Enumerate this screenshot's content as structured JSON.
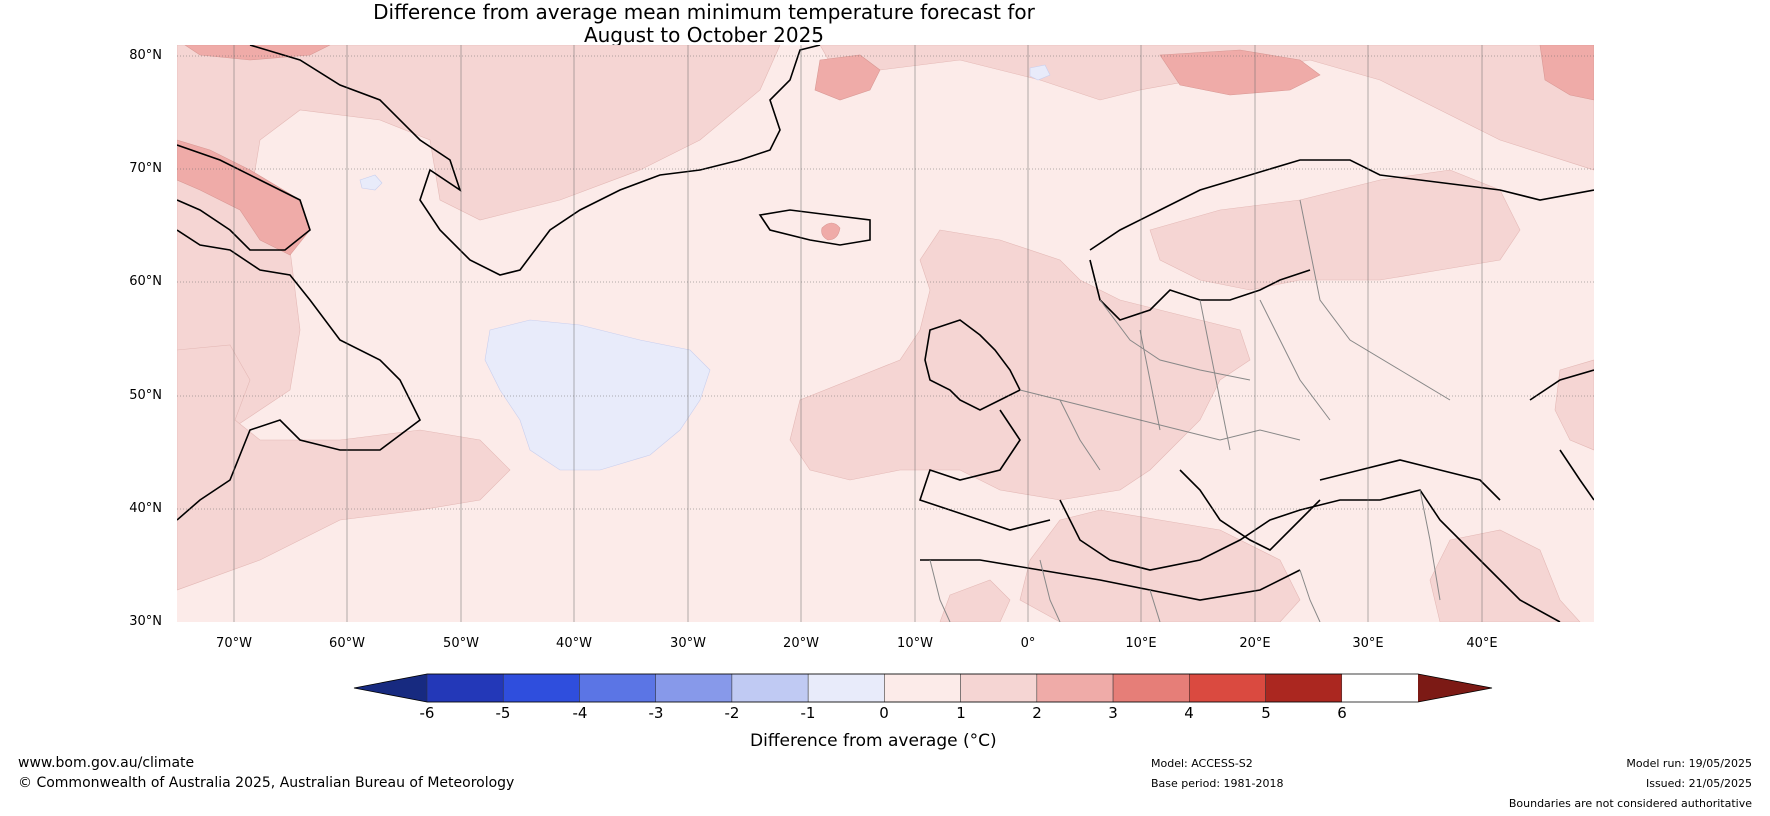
{
  "title": {
    "line1": "Difference from average mean minimum temperature forecast for",
    "line2": "August to October 2025"
  },
  "axes": {
    "lat_labels": [
      "80°N",
      "70°N",
      "60°N",
      "50°N",
      "40°N",
      "30°N"
    ],
    "lon_labels": [
      "70°W",
      "60°W",
      "50°W",
      "40°W",
      "30°W",
      "20°W",
      "10°W",
      "0°",
      "10°E",
      "20°E",
      "30°E",
      "40°E"
    ],
    "lat_range": [
      30,
      81
    ],
    "lon_range": [
      -75,
      50
    ]
  },
  "colorbar": {
    "label": "Difference from average (°C)",
    "ticks": [
      "-6",
      "-5",
      "-4",
      "-3",
      "-2",
      "-1",
      "0",
      "1",
      "2",
      "3",
      "4",
      "5",
      "6"
    ],
    "colors": [
      "#172a80",
      "#2338b8",
      "#2f4edd",
      "#5b75e5",
      "#8799ea",
      "#c0caf3",
      "#e8ebfa",
      "#fcebe9",
      "#f5d5d3",
      "#efaba8",
      "#e67e78",
      "#da4a40",
      "#ab2720",
      "#7c1a15"
    ]
  },
  "map_fill": {
    "background": "#fcebe9",
    "warm": "#f5d5d3",
    "warmer": "#efaba8",
    "cool": "#e8ebfa"
  },
  "footer": {
    "website": "www.bom.gov.au/climate",
    "copyright": "© Commonwealth of Australia 2025, Australian Bureau of Meteorology",
    "model": "Model: ACCESS-S2",
    "base_period": "Base period: 1981-2018",
    "model_run": "Model run: 19/05/2025",
    "issued": "Issued: 21/05/2025",
    "disclaimer": "Boundaries are not considered authoritative"
  }
}
